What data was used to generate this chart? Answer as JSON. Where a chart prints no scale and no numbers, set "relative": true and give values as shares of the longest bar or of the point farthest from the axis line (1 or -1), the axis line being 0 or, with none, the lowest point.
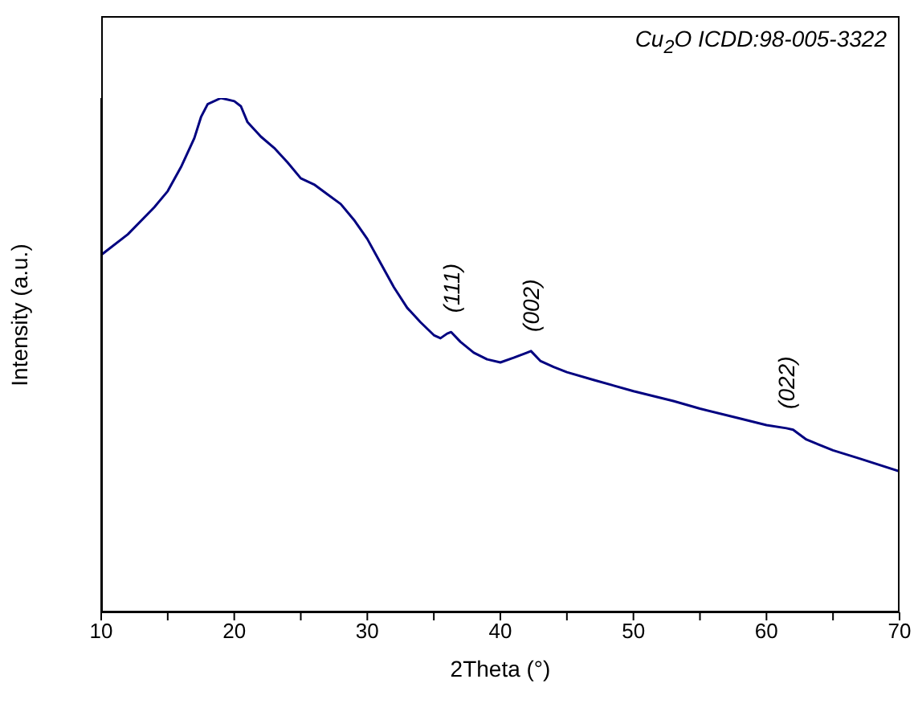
{
  "chart_data": {
    "type": "line",
    "xlabel": "2Theta (°)",
    "ylabel": "Intensity (a.u.)",
    "relative": true,
    "grid": false,
    "legend": false,
    "marker": "none",
    "line_style": "solid",
    "xlim": [
      10,
      70
    ],
    "xticks": [
      10,
      {
        "value": 15,
        "label": null
      },
      20,
      {
        "value": 25,
        "label": null
      },
      30,
      {
        "value": 35,
        "label": null
      },
      40,
      {
        "value": 45,
        "label": null
      },
      50,
      {
        "value": 55,
        "label": null
      },
      60,
      {
        "value": 65,
        "label": null
      },
      70
    ],
    "annotations": [
      "Cu$_{2}$O ICDD:98-005-3322",
      {
        "text": "(111)",
        "x": 36.3,
        "y": 0.545
      },
      {
        "text": "(002)",
        "x": 42.3,
        "y": 0.508
      },
      {
        "text": "(022)",
        "x": 61.5,
        "y": 0.358
      }
    ],
    "series": [
      {
        "color": "#000080",
        "x": [
          10,
          12,
          14,
          15,
          16,
          17,
          17.5,
          18,
          19,
          20,
          20.5,
          21,
          22,
          23,
          24,
          25,
          26,
          27,
          28,
          29,
          30,
          31,
          32,
          33,
          34,
          35,
          35.5,
          36,
          36.3,
          37,
          38,
          39,
          40,
          41,
          42,
          42.3,
          43,
          44,
          45,
          47,
          50,
          53,
          55,
          58,
          60,
          61.5,
          62,
          63,
          65,
          67,
          70
        ],
        "values": [
          0.695,
          0.735,
          0.788,
          0.819,
          0.866,
          0.922,
          0.963,
          0.988,
          1,
          0.994,
          0.984,
          0.953,
          0.925,
          0.903,
          0.875,
          0.844,
          0.832,
          0.813,
          0.794,
          0.763,
          0.726,
          0.679,
          0.632,
          0.592,
          0.564,
          0.539,
          0.533,
          0.542,
          0.545,
          0.526,
          0.505,
          0.492,
          0.486,
          0.495,
          0.505,
          0.508,
          0.489,
          0.477,
          0.467,
          0.452,
          0.43,
          0.411,
          0.396,
          0.377,
          0.364,
          0.358,
          0.355,
          0.336,
          0.315,
          0.299,
          0.274
        ]
      }
    ]
  }
}
